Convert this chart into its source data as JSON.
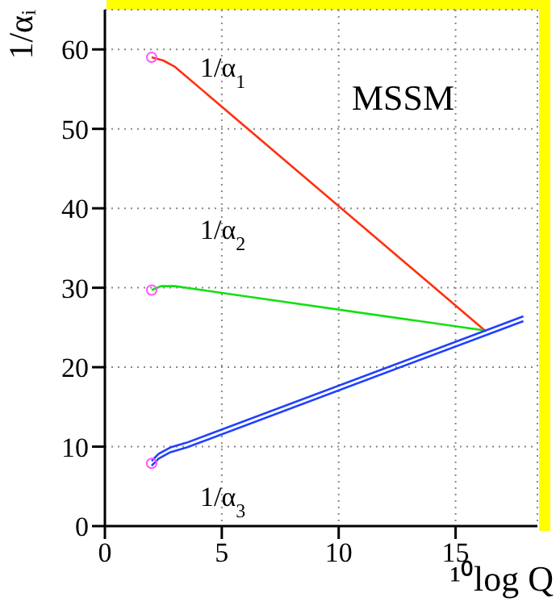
{
  "chart_data": {
    "type": "line",
    "title": "MSSM",
    "xlabel": "¹⁰log Q",
    "ylabel": "1/αᵢ",
    "xlim": [
      0,
      18.5
    ],
    "ylim": [
      0,
      65
    ],
    "xticks": [
      0,
      5,
      10,
      15
    ],
    "yticks": [
      0,
      10,
      20,
      30,
      40,
      50,
      60
    ],
    "grid": true,
    "legend": false,
    "marker": "none",
    "line_style": "solid",
    "series": [
      {
        "name": "1/α$_{1}$",
        "color": "#ff3010",
        "x": [
          2,
          2.5,
          3,
          16.3
        ],
        "values": [
          59,
          58.6,
          57.8,
          24.5
        ]
      },
      {
        "name": "1/α$_{2}$",
        "color": "#10e010",
        "x": [
          2,
          2.4,
          3,
          16.3
        ],
        "values": [
          29.7,
          30.2,
          30.2,
          24.6
        ]
      },
      {
        "name": "1/α$_{3}$",
        "color": "#2040ff",
        "x": [
          2,
          2.3,
          2.8,
          3.5,
          17.9
        ],
        "values": [
          8.2,
          9.1,
          9.9,
          10.5,
          26.4
        ]
      },
      {
        "color": "#2040ff",
        "x": [
          2,
          2.3,
          2.8,
          3.5,
          17.9
        ],
        "values": [
          7.6,
          8.5,
          9.3,
          9.9,
          25.8
        ]
      },
      {
        "type": "scatter",
        "color": "#ff55ff",
        "marker": "circle",
        "x": [
          2,
          2,
          2
        ],
        "values": [
          59,
          29.7,
          7.9
        ]
      }
    ]
  }
}
